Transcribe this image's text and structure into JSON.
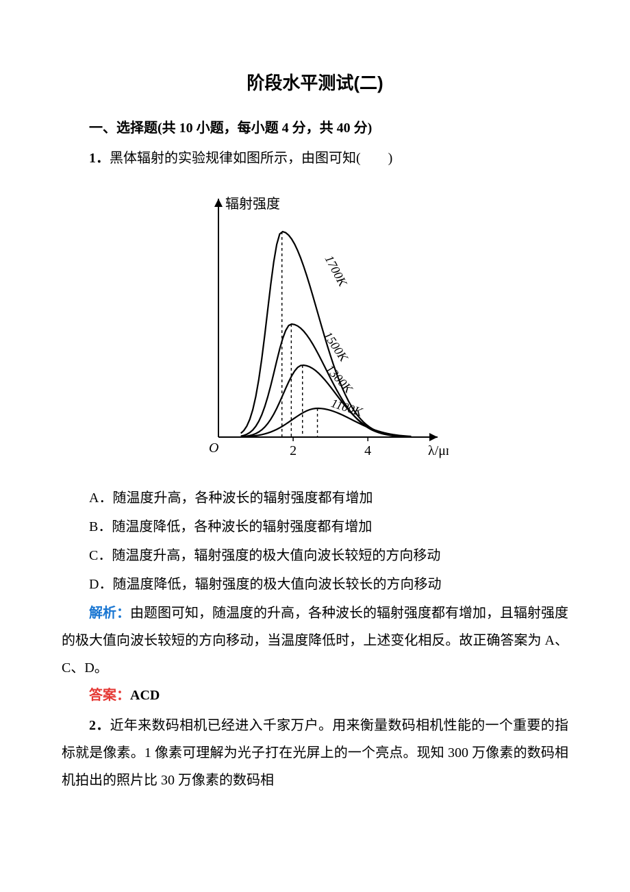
{
  "title": "阶段水平测试(二)",
  "section": "一、选择题(共 10 小题，每小题 4 分，共 40 分)",
  "q1": {
    "num": "1．",
    "text": "黑体辐射的实验规律如图所示，由图可知(　　)",
    "options": {
      "A": "A．随温度升高，各种波长的辐射强度都有增加",
      "B": "B．随温度降低，各种波长的辐射强度都有增加",
      "C": "C．随温度升高，辐射强度的极大值向波长较短的方向移动",
      "D": "D．随温度降低，辐射强度的极大值向波长较长的方向移动"
    },
    "analysis_label": "解析：",
    "analysis_text": "由题图可知，随温度的升高，各种波长的辐射强度都有增加，且辐射强度的极大值向波长较短的方向移动，当温度降低时，上述变化相反。故正确答案为 A、C、D。",
    "answer_label": "答案：",
    "answer_value": "ACD"
  },
  "q2": {
    "num": "2．",
    "text": "近年来数码相机已经进入千家万户。用来衡量数码相机性能的一个重要的指标就是像素。1 像素可理解为光子打在光屏上的一个亮点。现知 300 万像素的数码相机拍出的照片比 30 万像素的数码相"
  },
  "chart": {
    "type": "line",
    "ylabel": "辐射强度",
    "xlabel": "λ/μm",
    "origin_label": "O",
    "x_ticks": [
      "2",
      "4"
    ],
    "curves": [
      {
        "label": "1700K",
        "peak_x": 1.7,
        "peak_y": 1.0,
        "color": "#000000"
      },
      {
        "label": "1500K",
        "peak_x": 1.95,
        "peak_y": 0.55,
        "color": "#000000"
      },
      {
        "label": "1300K",
        "peak_x": 2.25,
        "peak_y": 0.35,
        "color": "#000000"
      },
      {
        "label": "1100K",
        "peak_x": 2.65,
        "peak_y": 0.14,
        "color": "#000000"
      }
    ],
    "x_range": [
      0,
      5.5
    ],
    "y_range": [
      0,
      1.1
    ],
    "stroke_width": 2.2,
    "dash": "4,4",
    "background": "#ffffff",
    "axis_color": "#000000",
    "label_fontsize": 20,
    "tick_fontsize": 20,
    "curve_label_fontsize": 18
  }
}
